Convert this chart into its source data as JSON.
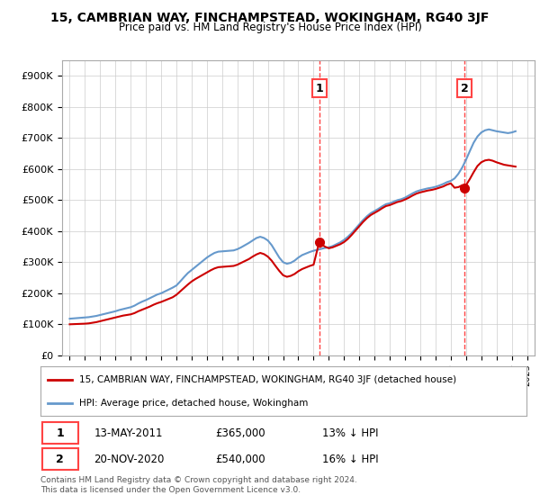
{
  "title": "15, CAMBRIAN WAY, FINCHAMPSTEAD, WOKINGHAM, RG40 3JF",
  "subtitle": "Price paid vs. HM Land Registry's House Price Index (HPI)",
  "legend_label_red": "15, CAMBRIAN WAY, FINCHAMPSTEAD, WOKINGHAM, RG40 3JF (detached house)",
  "legend_label_blue": "HPI: Average price, detached house, Wokingham",
  "annotation1_date": "13-MAY-2011",
  "annotation1_price": "£365,000",
  "annotation1_pct": "13% ↓ HPI",
  "annotation2_date": "20-NOV-2020",
  "annotation2_price": "£540,000",
  "annotation2_pct": "16% ↓ HPI",
  "footnote": "Contains HM Land Registry data © Crown copyright and database right 2024.\nThis data is licensed under the Open Government Licence v3.0.",
  "vline1_x": 2011.37,
  "vline2_x": 2020.9,
  "marker1_x": 2011.37,
  "marker1_y": 365000,
  "marker2_x": 2020.9,
  "marker2_y": 540000,
  "ylim": [
    0,
    950000
  ],
  "xlim": [
    1994.5,
    2025.5
  ],
  "background_color": "#ffffff",
  "grid_color": "#cccccc",
  "red_color": "#cc0000",
  "blue_color": "#6699cc",
  "vline_color": "#ff4444",
  "yticks": [
    0,
    100000,
    200000,
    300000,
    400000,
    500000,
    600000,
    700000,
    800000,
    900000
  ],
  "ylabels": [
    "£0",
    "£100K",
    "£200K",
    "£300K",
    "£400K",
    "£500K",
    "£600K",
    "£700K",
    "£800K",
    "£900K"
  ],
  "years_hpi": [
    1995.0,
    1995.25,
    1995.5,
    1995.75,
    1996.0,
    1996.25,
    1996.5,
    1996.75,
    1997.0,
    1997.25,
    1997.5,
    1997.75,
    1998.0,
    1998.25,
    1998.5,
    1998.75,
    1999.0,
    1999.25,
    1999.5,
    1999.75,
    2000.0,
    2000.25,
    2000.5,
    2000.75,
    2001.0,
    2001.25,
    2001.5,
    2001.75,
    2002.0,
    2002.25,
    2002.5,
    2002.75,
    2003.0,
    2003.25,
    2003.5,
    2003.75,
    2004.0,
    2004.25,
    2004.5,
    2004.75,
    2005.0,
    2005.25,
    2005.5,
    2005.75,
    2006.0,
    2006.25,
    2006.5,
    2006.75,
    2007.0,
    2007.25,
    2007.5,
    2007.75,
    2008.0,
    2008.25,
    2008.5,
    2008.75,
    2009.0,
    2009.25,
    2009.5,
    2009.75,
    2010.0,
    2010.25,
    2010.5,
    2010.75,
    2011.0,
    2011.25,
    2011.5,
    2011.75,
    2012.0,
    2012.25,
    2012.5,
    2012.75,
    2013.0,
    2013.25,
    2013.5,
    2013.75,
    2014.0,
    2014.25,
    2014.5,
    2014.75,
    2015.0,
    2015.25,
    2015.5,
    2015.75,
    2016.0,
    2016.25,
    2016.5,
    2016.75,
    2017.0,
    2017.25,
    2017.5,
    2017.75,
    2018.0,
    2018.25,
    2018.5,
    2018.75,
    2019.0,
    2019.25,
    2019.5,
    2019.75,
    2020.0,
    2020.25,
    2020.5,
    2020.75,
    2021.0,
    2021.25,
    2021.5,
    2021.75,
    2022.0,
    2022.25,
    2022.5,
    2022.75,
    2023.0,
    2023.25,
    2023.5,
    2023.75,
    2024.0,
    2024.25
  ],
  "hpi_values": [
    118000,
    119000,
    120000,
    121000,
    122000,
    123000,
    125000,
    127000,
    130000,
    133000,
    136000,
    139000,
    142000,
    146000,
    149000,
    152000,
    155000,
    160000,
    167000,
    173000,
    178000,
    184000,
    190000,
    196000,
    200000,
    206000,
    212000,
    218000,
    225000,
    238000,
    252000,
    265000,
    275000,
    285000,
    295000,
    305000,
    315000,
    323000,
    330000,
    334000,
    335000,
    336000,
    337000,
    338000,
    342000,
    348000,
    355000,
    362000,
    370000,
    378000,
    382000,
    378000,
    370000,
    355000,
    335000,
    315000,
    300000,
    295000,
    298000,
    305000,
    315000,
    323000,
    328000,
    333000,
    337000,
    340000,
    343000,
    346000,
    348000,
    352000,
    358000,
    364000,
    372000,
    382000,
    394000,
    408000,
    422000,
    436000,
    448000,
    458000,
    465000,
    472000,
    480000,
    487000,
    490000,
    495000,
    500000,
    503000,
    508000,
    515000,
    522000,
    528000,
    532000,
    535000,
    538000,
    540000,
    543000,
    547000,
    552000,
    558000,
    562000,
    570000,
    585000,
    605000,
    630000,
    658000,
    685000,
    705000,
    718000,
    725000,
    728000,
    725000,
    722000,
    720000,
    718000,
    716000,
    718000,
    722000
  ],
  "red_years": [
    1995.0,
    1995.25,
    1995.5,
    1995.75,
    1996.0,
    1996.25,
    1996.5,
    1996.75,
    1997.0,
    1997.25,
    1997.5,
    1997.75,
    1998.0,
    1998.25,
    1998.5,
    1998.75,
    1999.0,
    1999.25,
    1999.5,
    1999.75,
    2000.0,
    2000.25,
    2000.5,
    2000.75,
    2001.0,
    2001.25,
    2001.5,
    2001.75,
    2002.0,
    2002.25,
    2002.5,
    2002.75,
    2003.0,
    2003.25,
    2003.5,
    2003.75,
    2004.0,
    2004.25,
    2004.5,
    2004.75,
    2005.0,
    2005.25,
    2005.5,
    2005.75,
    2006.0,
    2006.25,
    2006.5,
    2006.75,
    2007.0,
    2007.25,
    2007.5,
    2007.75,
    2008.0,
    2008.25,
    2008.5,
    2008.75,
    2009.0,
    2009.25,
    2009.5,
    2009.75,
    2010.0,
    2010.25,
    2010.5,
    2010.75,
    2011.0,
    2011.37,
    2011.5,
    2011.75,
    2012.0,
    2012.25,
    2012.5,
    2012.75,
    2013.0,
    2013.25,
    2013.5,
    2013.75,
    2014.0,
    2014.25,
    2014.5,
    2014.75,
    2015.0,
    2015.25,
    2015.5,
    2015.75,
    2016.0,
    2016.25,
    2016.5,
    2016.75,
    2017.0,
    2017.25,
    2017.5,
    2017.75,
    2018.0,
    2018.25,
    2018.5,
    2018.75,
    2019.0,
    2019.25,
    2019.5,
    2019.75,
    2020.0,
    2020.25,
    2020.5,
    2020.75,
    2020.9,
    2021.0,
    2021.25,
    2021.5,
    2021.75,
    2022.0,
    2022.25,
    2022.5,
    2022.75,
    2023.0,
    2023.25,
    2023.5,
    2023.75,
    2024.0,
    2024.25
  ],
  "red_values": [
    100000,
    100500,
    101000,
    101500,
    102000,
    103000,
    105000,
    107000,
    110000,
    113000,
    116000,
    119000,
    122000,
    125000,
    128000,
    130000,
    132000,
    136000,
    142000,
    147000,
    152000,
    157000,
    163000,
    168000,
    172000,
    177000,
    182000,
    187000,
    195000,
    206000,
    217000,
    228000,
    238000,
    246000,
    253000,
    260000,
    267000,
    274000,
    280000,
    284000,
    285000,
    286000,
    287000,
    288000,
    292000,
    298000,
    304000,
    310000,
    318000,
    325000,
    330000,
    326000,
    318000,
    305000,
    288000,
    272000,
    258000,
    253000,
    256000,
    262000,
    271000,
    278000,
    283000,
    288000,
    292000,
    365000,
    358000,
    350000,
    345000,
    348000,
    353000,
    358000,
    365000,
    375000,
    388000,
    402000,
    416000,
    430000,
    442000,
    452000,
    459000,
    466000,
    474000,
    481000,
    484000,
    489000,
    494000,
    497000,
    502000,
    508000,
    515000,
    521000,
    525000,
    528000,
    531000,
    533000,
    536000,
    540000,
    544000,
    550000,
    554000,
    540000,
    542000,
    548000,
    540000,
    548000,
    568000,
    590000,
    610000,
    622000,
    628000,
    630000,
    627000,
    622000,
    618000,
    614000,
    612000,
    610000,
    608000
  ]
}
